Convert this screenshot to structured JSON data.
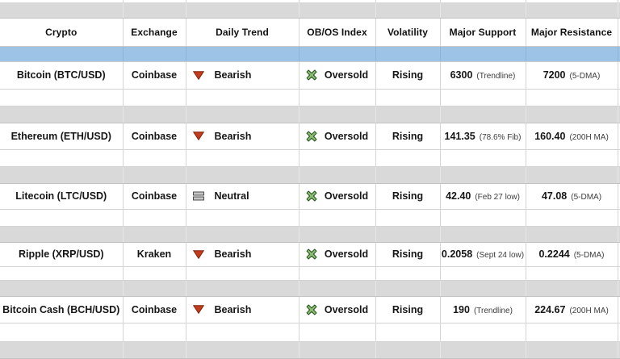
{
  "table": {
    "columns": [
      {
        "id": "crypto",
        "label": "Crypto"
      },
      {
        "id": "exchange",
        "label": "Exchange"
      },
      {
        "id": "daily_trend",
        "label": "Daily Trend"
      },
      {
        "id": "obos_index",
        "label": "OB/OS Index"
      },
      {
        "id": "volatility",
        "label": "Volatility"
      },
      {
        "id": "major_support",
        "label": "Major Support"
      },
      {
        "id": "major_resistance",
        "label": "Major Resistance"
      }
    ],
    "rows": [
      {
        "crypto": "Bitcoin (BTC/USD)",
        "exchange": "Coinbase",
        "daily_trend": {
          "label": "Bearish",
          "icon": "bearish-triangle-icon"
        },
        "obos_index": {
          "label": "Oversold",
          "icon": "oversold-x-icon"
        },
        "volatility": "Rising",
        "major_support": {
          "value": "6300",
          "note": "(Trendline)"
        },
        "major_resistance": {
          "value": "7200",
          "note": "(5-DMA)"
        }
      },
      {
        "crypto": "Ethereum (ETH/USD)",
        "exchange": "Coinbase",
        "daily_trend": {
          "label": "Bearish",
          "icon": "bearish-triangle-icon"
        },
        "obos_index": {
          "label": "Oversold",
          "icon": "oversold-x-icon"
        },
        "volatility": "Rising",
        "major_support": {
          "value": "141.35",
          "note": "(78.6% Fib)"
        },
        "major_resistance": {
          "value": "160.40",
          "note": "(200H MA)"
        }
      },
      {
        "crypto": "Litecoin (LTC/USD)",
        "exchange": "Coinbase",
        "daily_trend": {
          "label": "Neutral",
          "icon": "neutral-bars-icon"
        },
        "obos_index": {
          "label": "Oversold",
          "icon": "oversold-x-icon"
        },
        "volatility": "Rising",
        "major_support": {
          "value": "42.40",
          "note": "(Feb 27 low)"
        },
        "major_resistance": {
          "value": "47.08",
          "note": "(5-DMA)"
        }
      },
      {
        "crypto": "Ripple (XRP/USD)",
        "exchange": "Kraken",
        "daily_trend": {
          "label": "Bearish",
          "icon": "bearish-triangle-icon"
        },
        "obos_index": {
          "label": "Oversold",
          "icon": "oversold-x-icon"
        },
        "volatility": "Rising",
        "major_support": {
          "value": "0.2058",
          "note": "(Sept 24 low)"
        },
        "major_resistance": {
          "value": "0.2244",
          "note": "(5-DMA)"
        }
      },
      {
        "crypto": "Bitcoin Cash (BCH/USD)",
        "exchange": "Coinbase",
        "daily_trend": {
          "label": "Bearish",
          "icon": "bearish-triangle-icon"
        },
        "obos_index": {
          "label": "Oversold",
          "icon": "oversold-x-icon"
        },
        "volatility": "Rising",
        "major_support": {
          "value": "190",
          "note": "(Trendline)"
        },
        "major_resistance": {
          "value": "224.67",
          "note": "(200H MA)"
        }
      }
    ],
    "colors": {
      "highlight_row": "#9dc3e6",
      "spacer_row": "#d9d9d9",
      "gridline": "#d6d6d6",
      "bearish_icon_fill": "#c43b1d",
      "bearish_icon_stroke": "#80240a",
      "oversold_icon_fill": "#8cbb72",
      "oversold_icon_stroke": "#20501a",
      "neutral_icon_fill": "#c6c6c6",
      "neutral_icon_stroke": "#4d4d4d"
    }
  }
}
